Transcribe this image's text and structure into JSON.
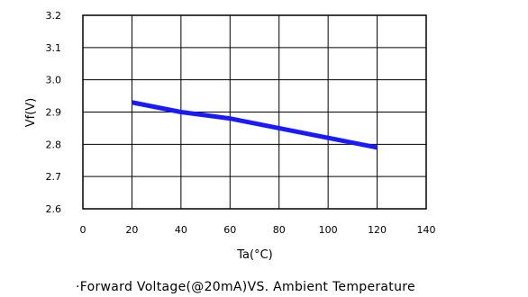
{
  "chart_data": {
    "type": "line",
    "title": "",
    "caption": "·Forward Voltage(@20mA)VS. Ambient Temperature",
    "xlabel": "Ta(°C)",
    "ylabel": "Vf(V)",
    "xlim": [
      0,
      140
    ],
    "ylim": [
      2.6,
      3.2
    ],
    "xticks": [
      "0",
      "20",
      "40",
      "60",
      "80",
      "100",
      "120",
      "140"
    ],
    "yticks": [
      "2.6",
      "2.7",
      "2.8",
      "2.9",
      "3.0",
      "3.1",
      "3.2"
    ],
    "grid": true,
    "series": [
      {
        "x": [
          20,
          40,
          60,
          80,
          100,
          120
        ],
        "y": [
          2.93,
          2.9,
          2.88,
          2.85,
          2.82,
          2.79
        ],
        "color": "#1a1aff"
      }
    ]
  }
}
